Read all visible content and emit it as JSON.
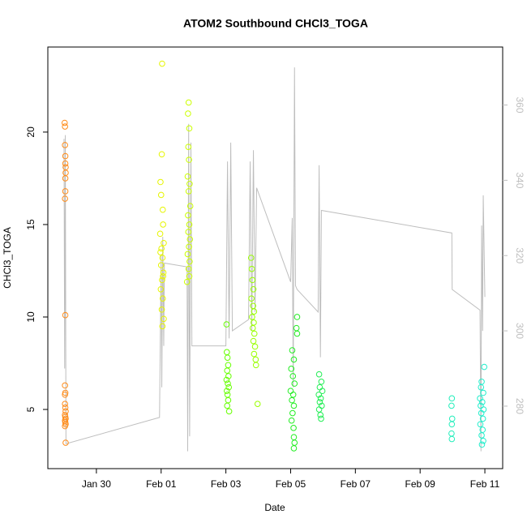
{
  "chart_data": {
    "type": "scatter",
    "title": "ATOM2 Southbound CHCl3_TOGA",
    "x_label": "Date",
    "y_label": "CHCl3_TOGA",
    "xlim": [
      28.5,
      42.55
    ],
    "ylim": [
      1.8,
      24.6
    ],
    "y2lim": [
      263.4,
      375.4
    ],
    "xticks": [
      {
        "value": 30,
        "label": "Jan 30"
      },
      {
        "value": 32,
        "label": "Feb 01"
      },
      {
        "value": 34,
        "label": "Feb 03"
      },
      {
        "value": 36,
        "label": "Feb 05"
      },
      {
        "value": 38,
        "label": "Feb 07"
      },
      {
        "value": 40,
        "label": "Feb 09"
      },
      {
        "value": 42,
        "label": "Feb 11"
      }
    ],
    "yticks": [
      5,
      10,
      15,
      20
    ],
    "y2ticks": [
      280,
      300,
      320,
      340,
      360
    ],
    "series": [
      {
        "color": "#ff8c1a",
        "x": [
          29.02,
          29.03,
          29.03,
          29.04,
          29.04,
          29.05,
          29.05,
          29.04,
          29.04,
          29.03,
          29.04,
          29.03,
          29.04,
          29.03,
          29.03,
          29.04,
          29.05,
          29.03,
          29.04,
          29.05,
          29.03,
          29.04,
          29.05,
          29.03,
          29.05
        ],
        "values": [
          20.5,
          20.3,
          19.3,
          18.7,
          18.3,
          18.1,
          17.8,
          17.5,
          16.8,
          16.4,
          10.1,
          6.3,
          5.9,
          5.8,
          5.3,
          5.1,
          4.9,
          4.7,
          4.6,
          4.5,
          4.4,
          4.3,
          4.2,
          4.1,
          3.2
        ]
      },
      {
        "color": "#e6f500",
        "x": [
          32.03,
          32.02,
          31.98,
          32.0,
          32.05,
          32.06,
          31.97,
          32.08,
          32.01,
          32.04,
          32.0,
          32.07,
          32.03,
          31.99,
          32.05,
          32.02,
          32.08,
          32.04,
          32.06,
          31.98
        ],
        "values": [
          23.7,
          18.8,
          17.3,
          16.6,
          15.8,
          15.0,
          14.5,
          14.0,
          13.7,
          13.2,
          12.8,
          12.4,
          12.0,
          11.5,
          11.0,
          10.4,
          9.9,
          9.5,
          12.2,
          13.5
        ]
      },
      {
        "color": "#ccff00",
        "x": [
          32.85,
          32.83,
          32.87,
          32.84,
          32.86,
          32.82,
          32.88,
          32.85,
          32.9,
          32.83,
          32.87,
          32.84,
          32.89,
          32.86,
          32.82,
          32.88,
          32.85,
          32.87,
          32.8
        ],
        "values": [
          21.6,
          21.0,
          20.2,
          19.2,
          18.5,
          17.6,
          17.2,
          16.8,
          16.0,
          15.5,
          15.0,
          14.6,
          14.2,
          13.8,
          13.4,
          13.0,
          12.6,
          12.2,
          11.9
        ]
      },
      {
        "color": "#66ff00",
        "x": [
          34.02,
          34.03,
          34.05,
          34.07,
          34.04,
          34.08,
          34.02,
          34.06,
          34.09,
          34.03,
          34.05,
          34.07,
          34.04,
          34.1
        ],
        "values": [
          9.6,
          8.1,
          7.8,
          7.4,
          7.1,
          6.8,
          6.6,
          6.4,
          6.2,
          6.0,
          5.8,
          5.5,
          5.2,
          4.9
        ]
      },
      {
        "color": "#99ff00",
        "x": [
          34.78,
          34.8,
          34.82,
          34.85,
          34.79,
          34.84,
          34.87,
          34.81,
          34.86,
          34.83,
          34.88,
          34.85,
          34.9,
          34.87,
          34.92,
          34.93,
          34.98
        ],
        "values": [
          13.2,
          12.6,
          12.0,
          11.5,
          11.0,
          10.6,
          10.3,
          10.0,
          9.7,
          9.4,
          9.1,
          8.7,
          8.4,
          8.0,
          7.7,
          7.4,
          5.3
        ]
      },
      {
        "color": "#22ee22",
        "x": [
          36.2,
          36.18,
          36.2,
          36.05,
          36.1,
          36.02,
          36.07,
          36.12,
          36.0,
          36.08,
          36.04,
          36.1,
          36.06,
          36.03,
          36.09,
          36.1,
          36.12,
          36.1
        ],
        "values": [
          10.0,
          9.4,
          9.1,
          8.2,
          7.7,
          7.2,
          6.8,
          6.4,
          6.0,
          5.8,
          5.5,
          5.2,
          4.8,
          4.4,
          4.0,
          3.5,
          3.2,
          2.9
        ]
      },
      {
        "color": "#22ee55",
        "x": [
          36.88,
          36.95,
          36.9,
          36.98,
          36.87,
          36.93,
          36.9,
          36.96,
          36.88,
          36.92,
          36.94
        ],
        "values": [
          6.9,
          6.5,
          6.2,
          6.0,
          5.8,
          5.6,
          5.4,
          5.2,
          5.0,
          4.7,
          4.5
        ]
      },
      {
        "color": "#22eebb",
        "x": [
          40.98,
          40.97,
          40.99,
          40.98,
          40.97,
          40.98
        ],
        "values": [
          5.6,
          5.2,
          4.5,
          4.2,
          3.7,
          3.4
        ]
      },
      {
        "color": "#22eecc",
        "x": [
          41.98,
          41.9,
          41.88,
          41.95,
          41.85,
          41.92,
          41.87,
          41.96,
          41.89,
          41.94,
          41.86,
          41.93,
          41.9,
          41.95,
          41.91
        ],
        "values": [
          7.3,
          6.5,
          6.2,
          5.9,
          5.6,
          5.4,
          5.2,
          5.0,
          4.8,
          4.5,
          4.2,
          3.9,
          3.6,
          3.3,
          3.1
        ]
      },
      {
        "type": "line",
        "axis": "y2",
        "color": "#bebebe",
        "x": [
          29.0,
          29.02,
          29.04,
          29.06,
          31.95,
          32.0,
          32.02,
          32.05,
          32.08,
          32.1,
          32.8,
          32.82,
          32.85,
          32.88,
          32.92,
          32.95,
          34.0,
          34.05,
          34.1,
          34.15,
          34.2,
          34.7,
          34.75,
          34.8,
          34.85,
          34.9,
          34.95,
          36.0,
          36.05,
          36.08,
          36.12,
          36.15,
          36.2,
          36.85,
          36.88,
          36.92,
          36.95,
          40.98,
          40.99,
          41.85,
          41.88,
          41.9,
          41.93,
          41.95,
          42.0
        ],
        "values": [
          351,
          290,
          352,
          270,
          277,
          320,
          285,
          325,
          296,
          318,
          317,
          268,
          355,
          272,
          350,
          296,
          296,
          345,
          298,
          350,
          300,
          303,
          345,
          300,
          348,
          305,
          338,
          313,
          330,
          285,
          370,
          312,
          311,
          305,
          344,
          293,
          332,
          326,
          311,
          305.5,
          268,
          328,
          300,
          336,
          309
        ]
      }
    ]
  }
}
